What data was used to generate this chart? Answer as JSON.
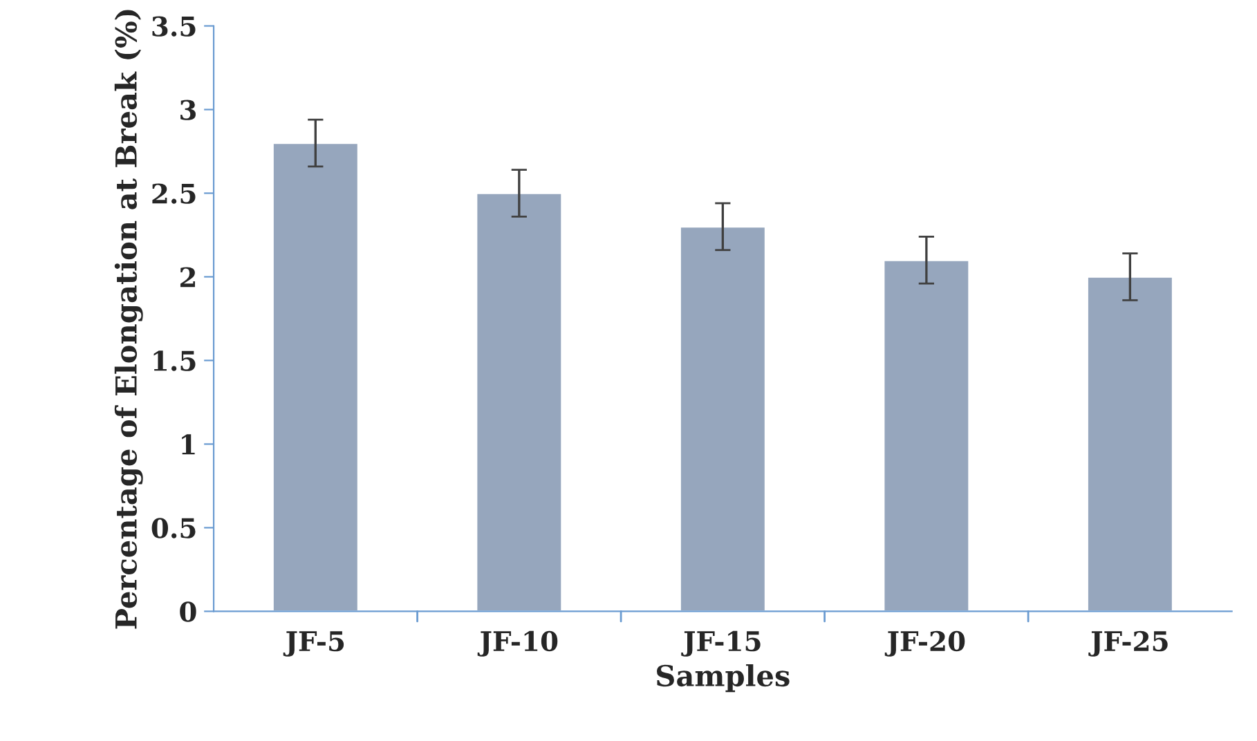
{
  "chart_data": {
    "type": "bar",
    "xlabel": "Samples",
    "ylabel": "Percentage of Elongation at Break (%)",
    "categories": [
      "JF-5",
      "JF-10",
      "JF-15",
      "JF-20",
      "JF-25"
    ],
    "values": [
      2.8,
      2.5,
      2.3,
      2.1,
      2.0
    ],
    "errors": [
      0.14,
      0.14,
      0.14,
      0.14,
      0.14
    ],
    "color": "#96a6bd",
    "ylim": [
      0,
      3.5
    ],
    "yticks": [
      0,
      0.5,
      1,
      1.5,
      2,
      2.5,
      3,
      3.5
    ],
    "grid": false,
    "legend": false
  }
}
